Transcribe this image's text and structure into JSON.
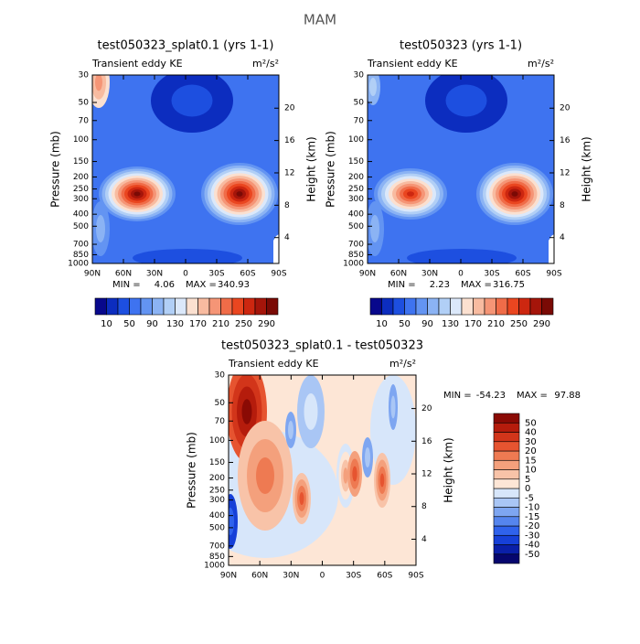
{
  "title": "MAM",
  "chart_data": [
    {
      "type": "contour",
      "title": "test050323_splat0.1 (yrs 1-1)",
      "subtitle": "Transient eddy KE",
      "units": "m²/s²",
      "ylabel": "Pressure (mb)",
      "y2label": "Height (km)",
      "xlim": [
        90,
        -90
      ],
      "xticks": [
        {
          "value": 90,
          "label": "90N"
        },
        {
          "value": 60,
          "label": "60N"
        },
        {
          "value": 30,
          "label": "30N"
        },
        0,
        {
          "value": -30,
          "label": "30S"
        },
        {
          "value": -60,
          "label": "60S"
        },
        {
          "value": -90,
          "label": "90S"
        }
      ],
      "ylim": [
        1000,
        30
      ],
      "log_scale": true,
      "yticks": [
        30,
        50,
        70,
        100,
        150,
        200,
        250,
        300,
        400,
        500,
        700,
        850,
        1000
      ],
      "y2lim": [
        0.8,
        24.1
      ],
      "y2ticks": [
        4,
        8,
        12,
        16,
        20
      ],
      "min_label": "MIN =",
      "min": 4.06,
      "max_label": "MAX =",
      "max": 340.93,
      "colorbar_orientation": "horizontal",
      "colorbar_labels": [
        10,
        50,
        90,
        130,
        170,
        210,
        250,
        290
      ],
      "colors": [
        "#08088c",
        "#0c2dbf",
        "#1d4fe0",
        "#3e73f0",
        "#6394f2",
        "#8bb3f4",
        "#b1cff6",
        "#dbe8fa",
        "#fbe0d0",
        "#f8bba0",
        "#f59576",
        "#f06c48",
        "#ea4620",
        "#cd2710",
        "#a5150a",
        "#7a0a05"
      ]
    },
    {
      "type": "contour",
      "title": "test050323 (yrs 1-1)",
      "subtitle": "Transient eddy KE",
      "units": "m²/s²",
      "ylabel": "Pressure (mb)",
      "y2label": "Height (km)",
      "xlim": [
        90,
        -90
      ],
      "xticks": [
        {
          "value": 90,
          "label": "90N"
        },
        {
          "value": 60,
          "label": "60N"
        },
        {
          "value": 30,
          "label": "30N"
        },
        0,
        {
          "value": -30,
          "label": "30S"
        },
        {
          "value": -60,
          "label": "60S"
        },
        {
          "value": -90,
          "label": "90S"
        }
      ],
      "ylim": [
        1000,
        30
      ],
      "log_scale": true,
      "yticks": [
        30,
        50,
        70,
        100,
        150,
        200,
        250,
        300,
        400,
        500,
        700,
        850,
        1000
      ],
      "y2lim": [
        0.8,
        24.1
      ],
      "y2ticks": [
        4,
        8,
        12,
        16,
        20
      ],
      "min_label": "MIN =",
      "min": 2.23,
      "max_label": "MAX =",
      "max": 316.75,
      "colorbar_orientation": "horizontal",
      "colorbar_labels": [
        10,
        50,
        90,
        130,
        170,
        210,
        250,
        290
      ],
      "colors": [
        "#08088c",
        "#0c2dbf",
        "#1d4fe0",
        "#3e73f0",
        "#6394f2",
        "#8bb3f4",
        "#b1cff6",
        "#dbe8fa",
        "#fbe0d0",
        "#f8bba0",
        "#f59576",
        "#f06c48",
        "#ea4620",
        "#cd2710",
        "#a5150a",
        "#7a0a05"
      ]
    },
    {
      "type": "contour",
      "title": "test050323_splat0.1 - test050323",
      "subtitle": "Transient eddy KE",
      "units": "m²/s²",
      "ylabel": "Pressure (mb)",
      "y2label": "Height (km)",
      "xlim": [
        90,
        -90
      ],
      "xticks": [
        {
          "value": 90,
          "label": "90N"
        },
        {
          "value": 60,
          "label": "60N"
        },
        {
          "value": 30,
          "label": "30N"
        },
        0,
        {
          "value": -30,
          "label": "30S"
        },
        {
          "value": -60,
          "label": "60S"
        },
        {
          "value": -90,
          "label": "90S"
        }
      ],
      "ylim": [
        1000,
        30
      ],
      "log_scale": true,
      "yticks": [
        30,
        50,
        70,
        100,
        150,
        200,
        250,
        300,
        400,
        500,
        700,
        850,
        1000
      ],
      "y2lim": [
        0.8,
        24.1
      ],
      "y2ticks": [
        4,
        8,
        12,
        16,
        20
      ],
      "min_label": "MIN =",
      "min": -54.23,
      "max_label": "MAX =",
      "max": 97.88,
      "colorbar_orientation": "vertical",
      "colorbar_labels": [
        -50,
        -40,
        -30,
        -20,
        -15,
        -10,
        -5,
        0,
        5,
        10,
        15,
        20,
        30,
        40,
        50
      ],
      "colors": [
        "#06066e",
        "#0a1fa8",
        "#1640d8",
        "#2f62ec",
        "#5585ee",
        "#7ea6f1",
        "#a9c6f5",
        "#d7e6fa",
        "#fde6d6",
        "#f8c3a8",
        "#f4a07c",
        "#ee7a52",
        "#e65430",
        "#d2351a",
        "#b51c0c",
        "#8a0a04"
      ]
    }
  ]
}
